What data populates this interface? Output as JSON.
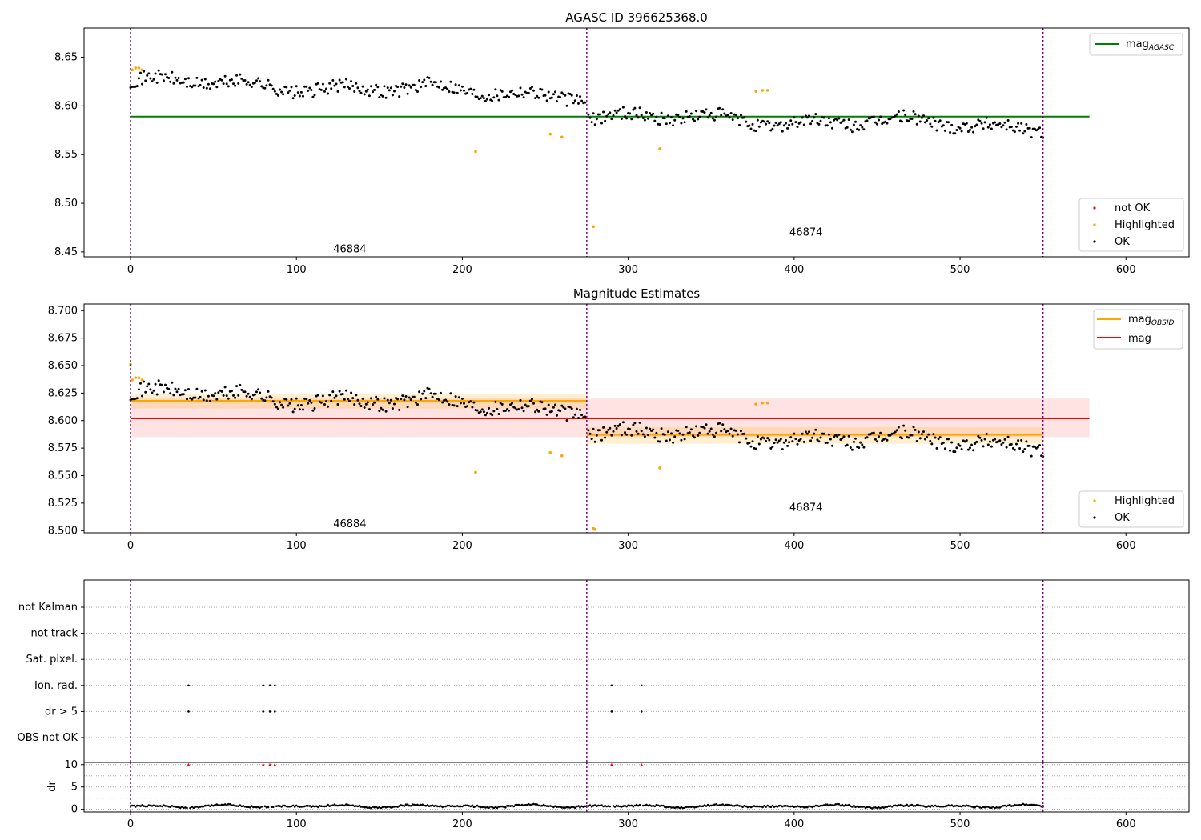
{
  "chart_data": [
    {
      "type": "scatter",
      "title": "AGASC ID 396625368.0",
      "xlim": [
        -28,
        638
      ],
      "ylim": [
        8.445,
        8.68
      ],
      "xticks": [
        0,
        100,
        200,
        300,
        400,
        500,
        600
      ],
      "yticks": [
        8.45,
        8.5,
        8.55,
        8.6,
        8.65
      ],
      "ytick_decimals": 2,
      "obs_boundaries": [
        0,
        275,
        550
      ],
      "obs_labels": [
        {
          "text": "46884",
          "x": 137,
          "y": 8.453
        },
        {
          "text": "46874",
          "x": 412,
          "y": 8.47
        }
      ],
      "lines": [
        {
          "name": "mag_AGASC",
          "color": "#008000",
          "x": [
            0,
            578
          ],
          "y": [
            8.589,
            8.589
          ]
        }
      ],
      "highlighted": {
        "x": [
          1,
          3,
          5,
          7,
          208,
          253,
          260,
          279,
          319,
          377,
          381,
          384
        ],
        "y": [
          8.637,
          8.639,
          8.639,
          8.637,
          8.553,
          8.571,
          8.568,
          8.476,
          8.556,
          8.615,
          8.616,
          8.616
        ]
      },
      "ok_series": {
        "segments": [
          {
            "x0": 0,
            "x1": 274,
            "mean": 8.618,
            "noise": 0.009,
            "drift": [
              8.625,
              8.612
            ]
          },
          {
            "x0": 276,
            "x1": 550,
            "mean": 8.587,
            "noise": 0.009,
            "drift": [
              8.589,
              8.579
            ]
          }
        ]
      },
      "legend_lines": [
        {
          "label_main": "mag",
          "label_sub": "AGASC",
          "color": "#008000"
        }
      ],
      "legend_points": [
        {
          "label": "not OK",
          "color": "#ff0000"
        },
        {
          "label": "Highlighted",
          "color": "#ffa500"
        },
        {
          "label": "OK",
          "color": "#000000"
        }
      ]
    },
    {
      "type": "scatter",
      "title": "Magnitude Estimates",
      "xlim": [
        -28,
        638
      ],
      "ylim": [
        8.498,
        8.706
      ],
      "xticks": [
        0,
        100,
        200,
        300,
        400,
        500,
        600
      ],
      "yticks": [
        8.5,
        8.525,
        8.55,
        8.575,
        8.6,
        8.625,
        8.65,
        8.675,
        8.7
      ],
      "ytick_decimals": 3,
      "obs_boundaries": [
        0,
        275,
        550
      ],
      "obs_labels": [
        {
          "text": "46884",
          "x": 137,
          "y": 8.506
        },
        {
          "text": "46874",
          "x": 412,
          "y": 8.521
        }
      ],
      "bands": [
        {
          "x": [
            0,
            578
          ],
          "y": [
            8.585,
            8.62
          ],
          "color": "#ff0000",
          "opacity": 0.11
        },
        {
          "x": [
            0,
            275
          ],
          "y": [
            8.611,
            8.624
          ],
          "color": "#ffa500",
          "opacity": 0.18
        },
        {
          "x": [
            275,
            550
          ],
          "y": [
            8.579,
            8.594
          ],
          "color": "#ffa500",
          "opacity": 0.18
        }
      ],
      "lines": [
        {
          "name": "mag",
          "color": "#ff0000",
          "x": [
            0,
            578
          ],
          "y": [
            8.602,
            8.602
          ]
        },
        {
          "name": "mag_OBSID 46884",
          "color": "#ffa500",
          "x": [
            0,
            275
          ],
          "y": [
            8.618,
            8.618
          ]
        },
        {
          "name": "mag_OBSID 46874",
          "color": "#ffa500",
          "x": [
            275,
            550
          ],
          "y": [
            8.587,
            8.587
          ]
        }
      ],
      "highlighted": {
        "x": [
          0,
          1,
          3,
          5,
          7,
          208,
          253,
          260,
          279,
          280,
          319,
          377,
          381,
          384
        ],
        "y": [
          8.651,
          8.637,
          8.639,
          8.639,
          8.637,
          8.553,
          8.571,
          8.568,
          8.502,
          8.501,
          8.557,
          8.615,
          8.616,
          8.616
        ]
      },
      "ok_series": {
        "segments": [
          {
            "x0": 0,
            "x1": 274,
            "mean": 8.618,
            "noise": 0.009,
            "drift": [
              8.625,
              8.612
            ]
          },
          {
            "x0": 276,
            "x1": 550,
            "mean": 8.587,
            "noise": 0.009,
            "drift": [
              8.589,
              8.579
            ]
          }
        ]
      },
      "legend_lines": [
        {
          "label_main": "mag",
          "label_sub": "OBSID",
          "color": "#ffa500"
        },
        {
          "label_main": "mag",
          "label_sub": "",
          "color": "#ff0000"
        }
      ],
      "legend_points": [
        {
          "label": "Highlighted",
          "color": "#ffa500"
        },
        {
          "label": "OK",
          "color": "#000000"
        }
      ]
    },
    {
      "type": "scatter",
      "title": "",
      "xlim": [
        -28,
        638
      ],
      "flag_rows": [
        "not Kalman",
        "not track",
        "Sat. pixel.",
        "Ion. rad.",
        "dr > 5",
        "OBS not OK"
      ],
      "flags": {
        "Ion. rad.": [
          35,
          80,
          84,
          87,
          290,
          308
        ],
        "dr > 5": [
          35,
          80,
          84,
          87,
          290,
          308
        ]
      },
      "obs_boundaries": [
        0,
        275,
        550
      ]
    },
    {
      "type": "scatter",
      "ylabel": "dr",
      "xlim": [
        -28,
        638
      ],
      "ylim": [
        -0.6,
        10.5
      ],
      "xticks": [
        0,
        100,
        200,
        300,
        400,
        500,
        600
      ],
      "yticks": [
        0,
        5,
        10
      ],
      "obs_boundaries": [
        0,
        275,
        550
      ],
      "clipped_points_x": [
        35,
        80,
        84,
        87,
        290,
        308
      ],
      "dr_series": {
        "x0": 0,
        "x1": 550,
        "base": 0.7,
        "amplitude": 0.35
      }
    }
  ]
}
